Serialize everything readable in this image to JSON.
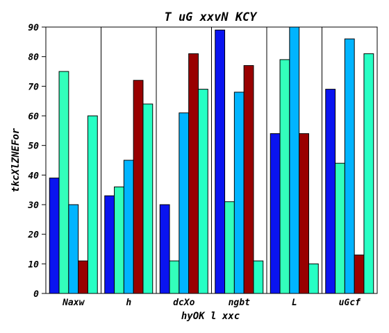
{
  "chart_data": {
    "type": "bar",
    "title": "T uG xxvN KCY",
    "xlabel": "hyOK l xxc",
    "ylabel": "tkcXlZNEFor",
    "categories": [
      "Naxw",
      "h",
      "dcXo",
      "ngbt",
      "L",
      "uGcf"
    ],
    "ylim": [
      0,
      90
    ],
    "yticks": [
      0,
      10,
      20,
      30,
      40,
      50,
      60,
      70,
      80,
      90
    ],
    "grid": {
      "vertical": true,
      "horizontal": false
    },
    "series": [
      {
        "color": "#0a14f0",
        "values": [
          39,
          33,
          30,
          89,
          54,
          69
        ]
      },
      {
        "color": "#33ffbb",
        "values": [
          75,
          36,
          11,
          31,
          79,
          44
        ]
      },
      {
        "color": "#00b4ff",
        "values": [
          30,
          45,
          61,
          68,
          90,
          86
        ]
      },
      {
        "color": "#990000",
        "values": [
          11,
          72,
          81,
          77,
          54,
          13
        ]
      },
      {
        "color": "#26ffc4",
        "values": [
          60,
          64,
          69,
          11,
          10,
          81
        ]
      }
    ]
  }
}
